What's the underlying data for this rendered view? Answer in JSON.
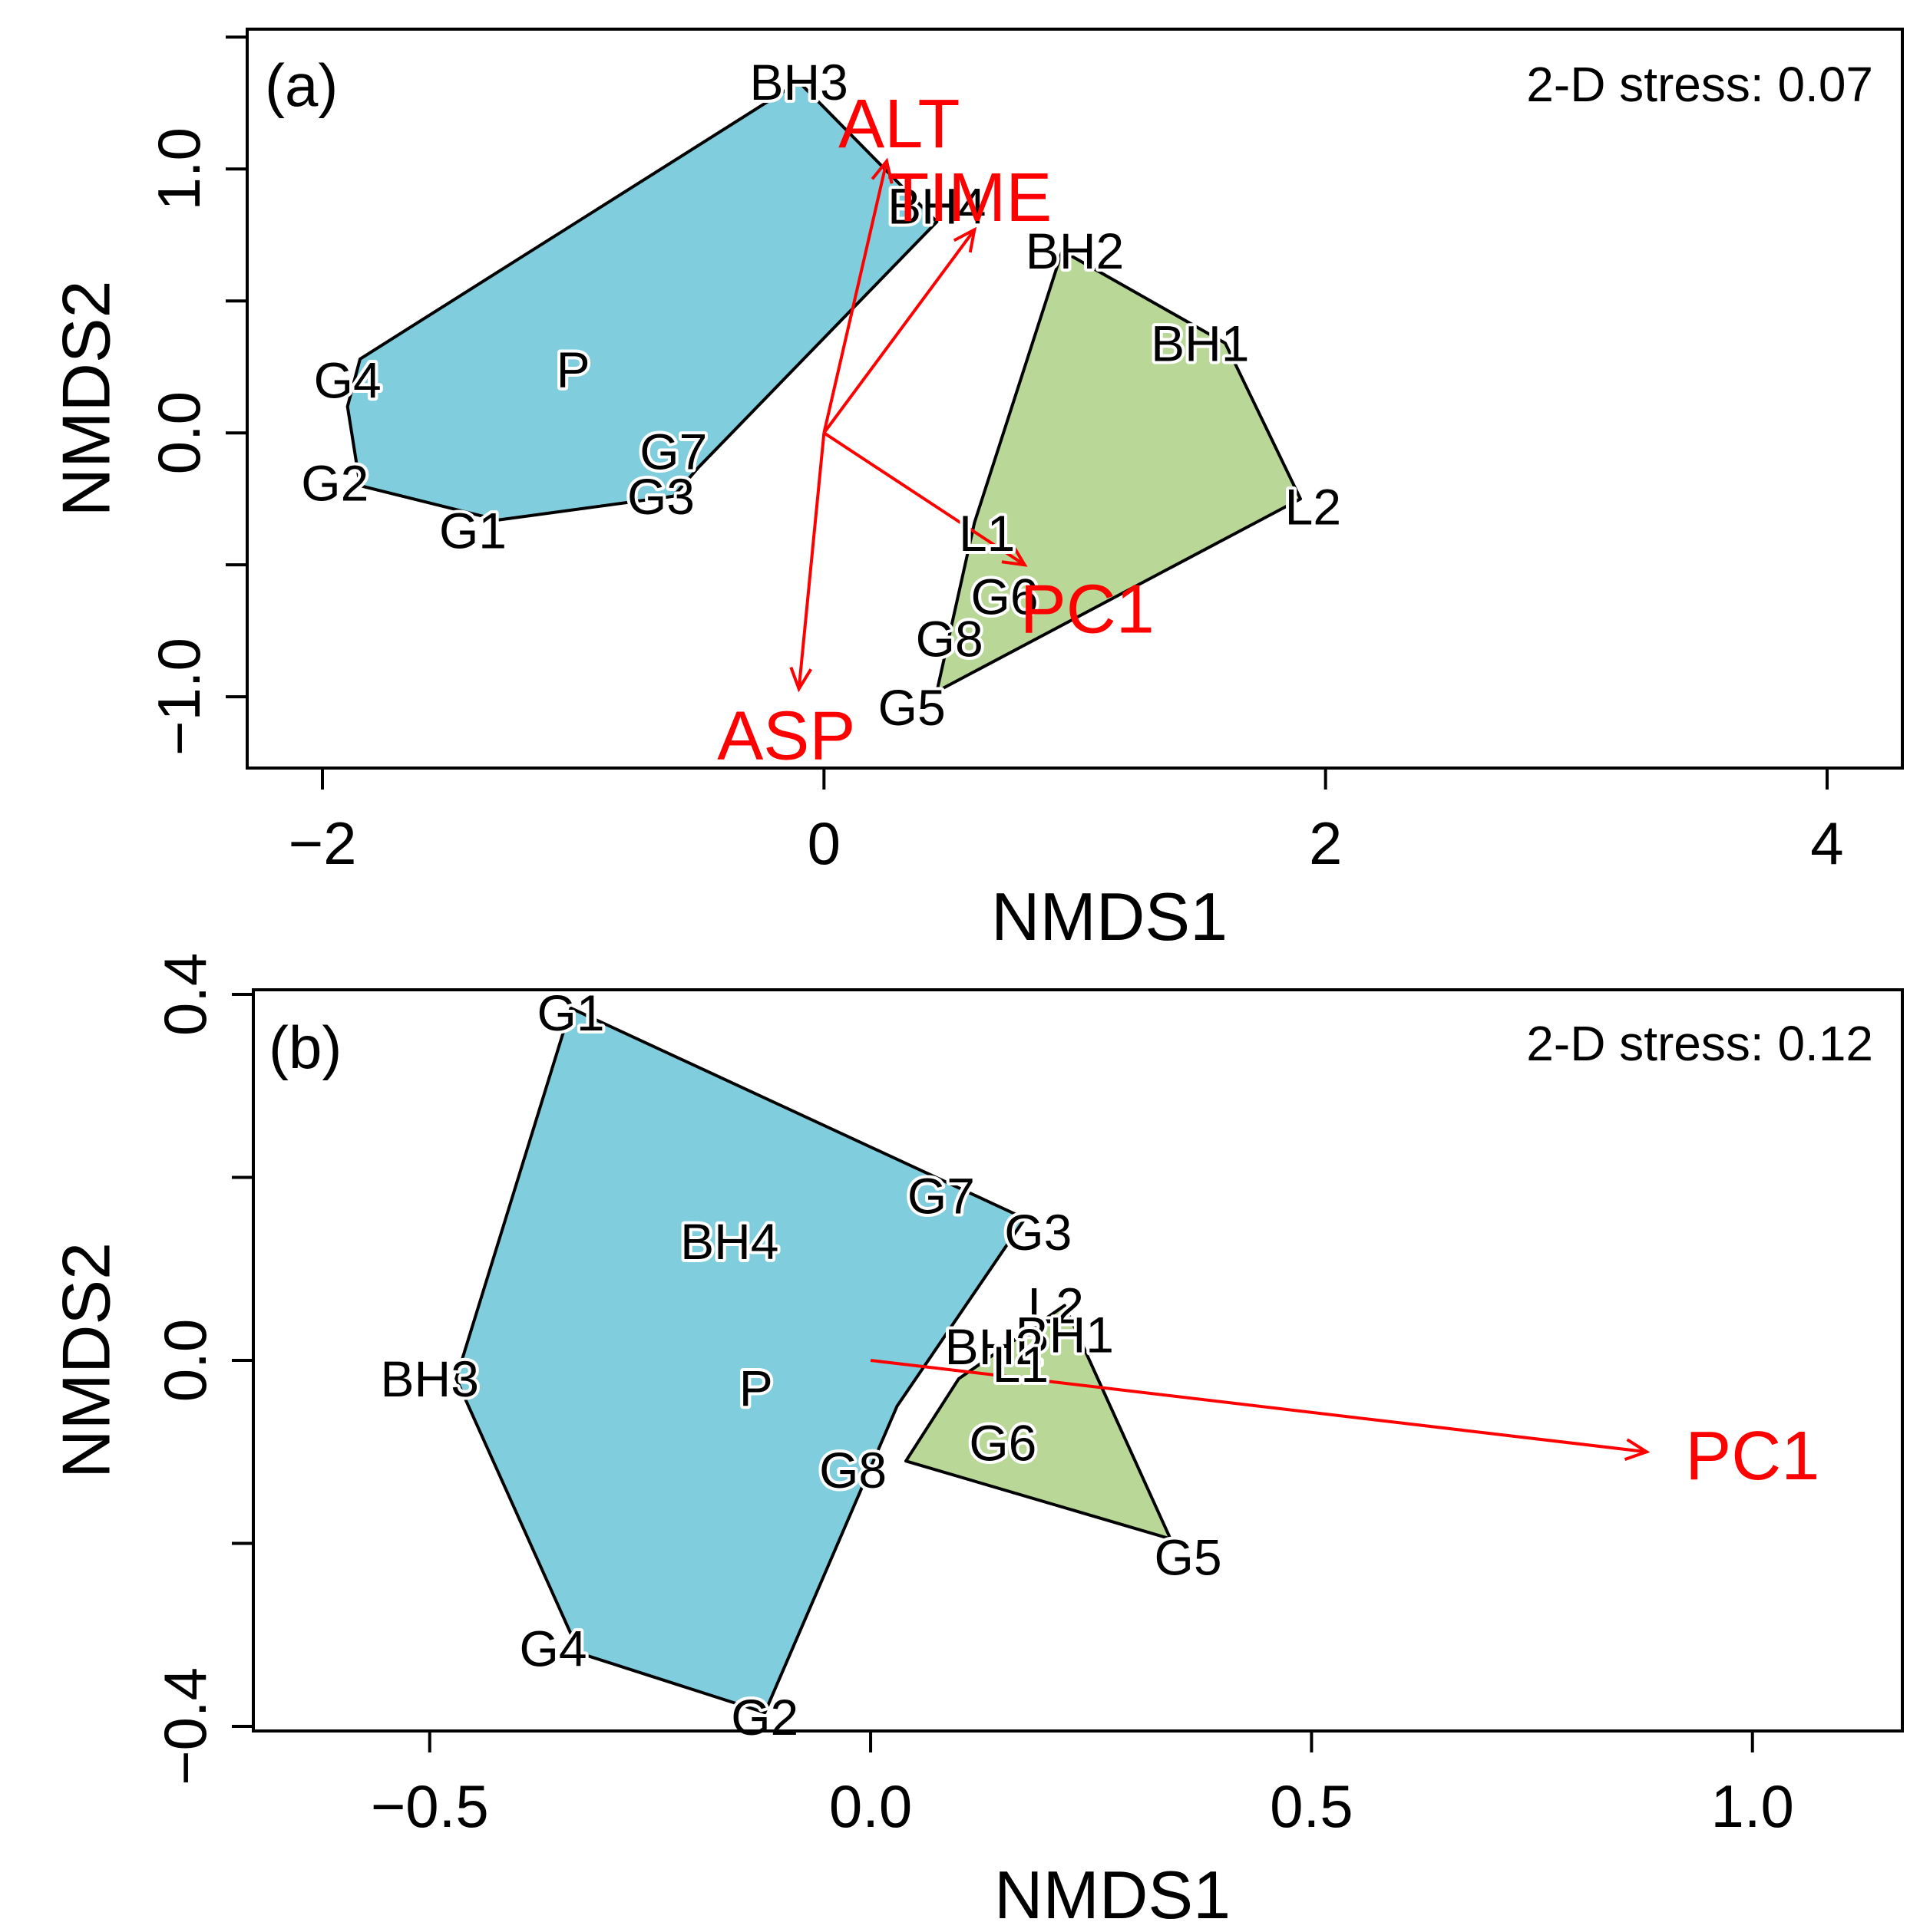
{
  "chart_data": [
    {
      "type": "scatter",
      "panel": "(a)",
      "stress": "2-D stress: 0.07",
      "xlabel": "NMDS1",
      "ylabel": "NMDS2",
      "xlim": [
        -2.3,
        4.3
      ],
      "ylim": [
        -1.27,
        1.53
      ],
      "xticks": [
        -2,
        0,
        2,
        4
      ],
      "yticks": [
        -1.0,
        0.0,
        1.0
      ],
      "xtick_labels": [
        "−2",
        "0",
        "2",
        "4"
      ],
      "ytick_labels": [
        "−1.0",
        "0.0",
        "1.0"
      ],
      "hulls": [
        {
          "name": "blue group",
          "color": "#7fcddd",
          "vertices": [
            [
              -1.85,
              0.28
            ],
            [
              -0.1,
              1.33
            ],
            [
              0.45,
              0.8
            ],
            [
              -0.5,
              -0.13
            ],
            [
              -0.6,
              -0.24
            ],
            [
              -1.3,
              -0.33
            ],
            [
              -1.85,
              -0.2
            ],
            [
              -1.9,
              0.1
            ]
          ]
        },
        {
          "name": "green group",
          "color": "#b9d796",
          "vertices": [
            [
              0.95,
              0.69
            ],
            [
              1.6,
              0.34
            ],
            [
              1.9,
              -0.25
            ],
            [
              0.45,
              -0.98
            ],
            [
              0.6,
              -0.34
            ]
          ]
        }
      ],
      "points": [
        {
          "label": "BH3",
          "x": -0.1,
          "y": 1.33
        },
        {
          "label": "BH4",
          "x": 0.45,
          "y": 0.86
        },
        {
          "label": "BH2",
          "x": 1.0,
          "y": 0.69
        },
        {
          "label": "BH1",
          "x": 1.5,
          "y": 0.34
        },
        {
          "label": "G4",
          "x": -1.9,
          "y": 0.2
        },
        {
          "label": "P",
          "x": -1.0,
          "y": 0.24
        },
        {
          "label": "G7",
          "x": -0.6,
          "y": -0.07
        },
        {
          "label": "G2",
          "x": -1.95,
          "y": -0.19
        },
        {
          "label": "G3",
          "x": -0.65,
          "y": -0.24
        },
        {
          "label": "G1",
          "x": -1.4,
          "y": -0.37
        },
        {
          "label": "L2",
          "x": 1.95,
          "y": -0.28
        },
        {
          "label": "L1",
          "x": 0.65,
          "y": -0.38
        },
        {
          "label": "G6",
          "x": 0.72,
          "y": -0.62
        },
        {
          "label": "G8",
          "x": 0.5,
          "y": -0.78
        },
        {
          "label": "G5",
          "x": 0.35,
          "y": -1.04
        }
      ],
      "vectors": [
        {
          "label": "ALT",
          "x": 0.25,
          "y": 1.03,
          "lx": 0.3,
          "ly": 1.17
        },
        {
          "label": "TIME",
          "x": 0.6,
          "y": 0.77,
          "lx": 0.58,
          "ly": 0.89
        },
        {
          "label": "PC1",
          "x": 0.8,
          "y": -0.5,
          "lx": 1.05,
          "ly": -0.67
        },
        {
          "label": "ASP",
          "x": -0.1,
          "y": -0.97,
          "lx": -0.15,
          "ly": -1.15
        }
      ]
    },
    {
      "type": "scatter",
      "panel": "(b)",
      "stress": "2-D stress: 0.12",
      "xlabel": "NMDS1",
      "ylabel": "NMDS2",
      "xlim": [
        -0.7,
        1.17
      ],
      "ylim": [
        -0.405,
        0.405
      ],
      "xticks": [
        -0.5,
        0.0,
        0.5,
        1.0
      ],
      "yticks": [
        -0.4,
        0.0,
        0.4
      ],
      "xtick_labels": [
        "−0.5",
        "0.0",
        "0.5",
        "1.0"
      ],
      "ytick_labels": [
        "−0.4",
        "0.0",
        "0.4"
      ],
      "hulls": [
        {
          "name": "blue group",
          "color": "#7fcddd",
          "vertices": [
            [
              -0.34,
              0.385
            ],
            [
              0.175,
              0.155
            ],
            [
              0.03,
              -0.05
            ],
            [
              -0.12,
              -0.385
            ],
            [
              -0.33,
              -0.32
            ],
            [
              -0.47,
              -0.02
            ]
          ]
        },
        {
          "name": "green group",
          "color": "#b9d796",
          "vertices": [
            [
              0.22,
              0.06
            ],
            [
              0.34,
              -0.195
            ],
            [
              0.04,
              -0.11
            ],
            [
              0.1,
              -0.02
            ]
          ]
        }
      ],
      "points": [
        {
          "label": "G1",
          "x": -0.34,
          "y": 0.38
        },
        {
          "label": "G7",
          "x": 0.08,
          "y": 0.18
        },
        {
          "label": "G3",
          "x": 0.19,
          "y": 0.14
        },
        {
          "label": "BH4",
          "x": -0.16,
          "y": 0.13
        },
        {
          "label": "L2",
          "x": 0.21,
          "y": 0.06
        },
        {
          "label": "BH1",
          "x": 0.22,
          "y": 0.028
        },
        {
          "label": "BH2",
          "x": 0.14,
          "y": 0.015
        },
        {
          "label": "L1",
          "x": 0.17,
          "y": -0.004
        },
        {
          "label": "BH3",
          "x": -0.5,
          "y": -0.02
        },
        {
          "label": "P",
          "x": -0.13,
          "y": -0.03
        },
        {
          "label": "G6",
          "x": 0.15,
          "y": -0.09
        },
        {
          "label": "G8",
          "x": -0.02,
          "y": -0.12
        },
        {
          "label": "G5",
          "x": 0.36,
          "y": -0.215
        },
        {
          "label": "G4",
          "x": -0.36,
          "y": -0.315
        },
        {
          "label": "G2",
          "x": -0.12,
          "y": -0.39
        }
      ],
      "vectors": [
        {
          "label": "PC1",
          "x": 0.88,
          "y": -0.1,
          "lx": 1.0,
          "ly": -0.105
        }
      ]
    }
  ]
}
